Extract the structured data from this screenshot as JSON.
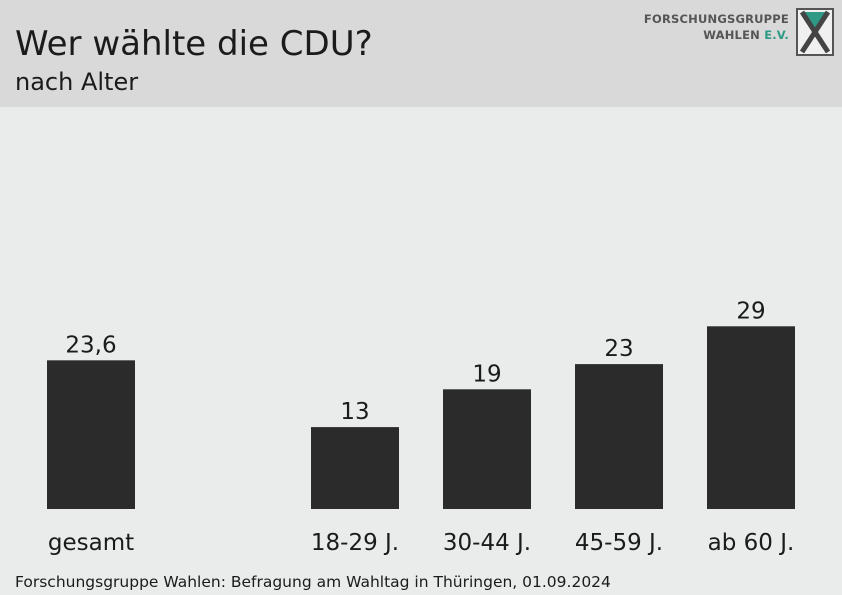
{
  "header": {
    "title": "Wer wählte die CDU?",
    "subtitle": "nach Alter",
    "logo_line1": "FORSCHUNGSGRUPPE",
    "logo_line2_main": "WAHLEN",
    "logo_line2_accent": "E.V."
  },
  "footer": {
    "source": "Forschungsgruppe Wahlen: Befragung am Wahltag in Thüringen, 01.09.2024"
  },
  "colors": {
    "bar": "#2b2b2b",
    "header_bg": "#d9d9d9",
    "background": "#e9ecea",
    "accent": "#2e9a86"
  },
  "chart_data": {
    "type": "bar",
    "categories": [
      "gesamt",
      "18-29 J.",
      "30-44 J.",
      "45-59 J.",
      "ab 60 J."
    ],
    "values": [
      23.6,
      13,
      19,
      23,
      29
    ],
    "value_labels": [
      "23,6",
      "13",
      "19",
      "23",
      "29"
    ],
    "title": "Wer wählte die CDU?",
    "subtitle": "nach Alter",
    "xlabel": "",
    "ylabel": "",
    "ylim": [
      0,
      35
    ],
    "grid": false,
    "legend": "none"
  }
}
